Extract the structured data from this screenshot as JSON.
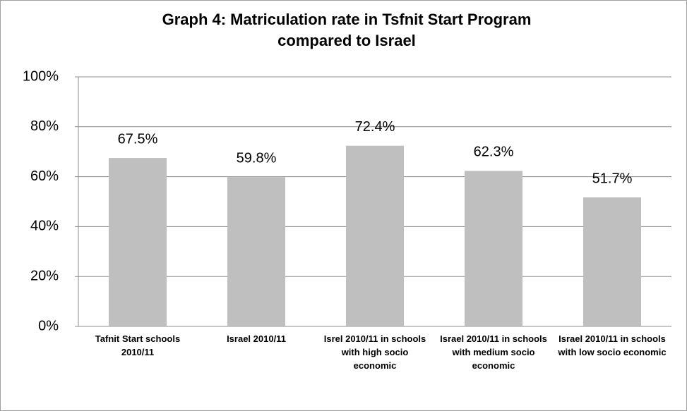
{
  "chart_data": {
    "type": "bar",
    "title": "Graph 4: Matriculation rate in Tsfnit Start Program compared to Israel",
    "categories": [
      "Tafnit Start schools 2010/11",
      "Israel 2010/11",
      "Isrel 2010/11 in schools with high socio economic",
      "Israel 2010/11 in schools with medium socio economic",
      "Israel 2010/11 in schools with low socio economic"
    ],
    "values": [
      67.5,
      59.8,
      72.4,
      62.3,
      51.7
    ],
    "value_labels": [
      "67.5%",
      "59.8%",
      "72.4%",
      "62.3%",
      "51.7%"
    ],
    "color": "#bfbfbf",
    "ylim": [
      0,
      100
    ],
    "yticks": [
      {
        "value": 0,
        "label": "0%"
      },
      {
        "value": 20,
        "label": "20%"
      },
      {
        "value": 40,
        "label": "40%"
      },
      {
        "value": 60,
        "label": "60%"
      },
      {
        "value": 80,
        "label": "80%"
      },
      {
        "value": 100,
        "label": "100%"
      }
    ],
    "grid": true
  }
}
